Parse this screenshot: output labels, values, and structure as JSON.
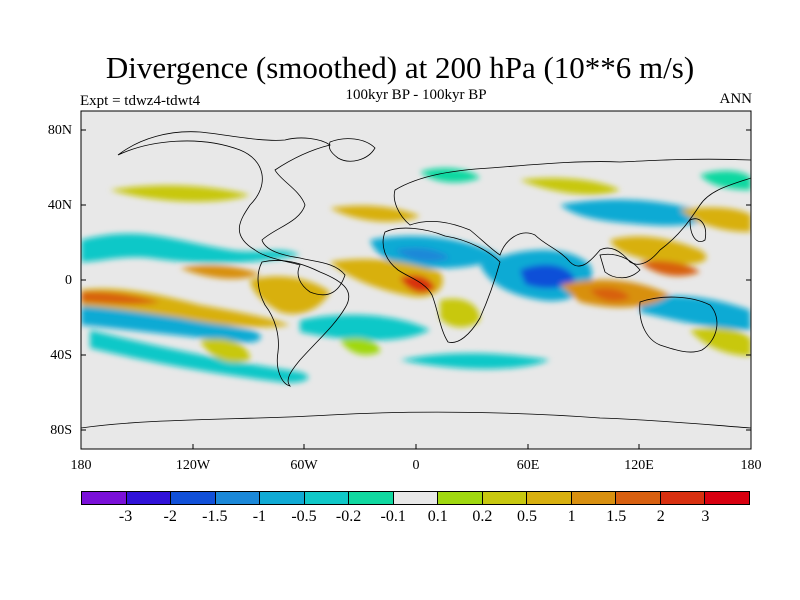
{
  "title": "Divergence (smoothed) at 200 hPa (10**6 m/s)",
  "subtitle": "100kyr BP - 100kyr BP",
  "expt": "Expt = tdwz4-tdwt4",
  "season": "ANN",
  "lat_labels": [
    "80N",
    "40N",
    "0",
    "40S",
    "80S"
  ],
  "lon_labels": [
    "180",
    "120W",
    "60W",
    "0",
    "60E",
    "120E",
    "180"
  ],
  "colorbar": {
    "colors": [
      "#7a10d8",
      "#3012d8",
      "#1150d8",
      "#1b88d8",
      "#10aad4",
      "#10c8c8",
      "#10d8a0",
      "#e8e8e8",
      "#a0d810",
      "#c8c810",
      "#d8b010",
      "#d89010",
      "#d86010",
      "#d83010",
      "#d80010"
    ],
    "labels": [
      "-3",
      "-2",
      "-1.5",
      "-1",
      "-0.5",
      "-0.2",
      "-0.1",
      "0.1",
      "0.2",
      "0.5",
      "1",
      "1.5",
      "2",
      "3"
    ]
  }
}
